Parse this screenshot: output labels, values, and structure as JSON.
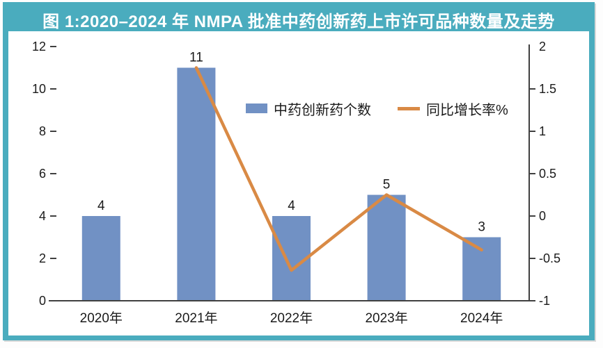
{
  "title": "图 1:2020–2024 年 NMPA 批准中药创新药上市许可品种数量及走势",
  "legend": {
    "bar_label": "中药创新药个数",
    "line_label": "同比增长率%"
  },
  "colors": {
    "frame_teal": "#4aacbe",
    "bar_blue": "#7191c4",
    "line_orange": "#d98a45",
    "axis_line": "#404040",
    "axis_text": "#1a1a1a",
    "title_text": "#ffffff"
  },
  "chart_data": {
    "type": "combo-bar-line",
    "title": "图 1:2020–2024 年 NMPA 批准中药创新药上市许可品种数量及走势",
    "categories": [
      "2020年",
      "2021年",
      "2022年",
      "2023年",
      "2024年"
    ],
    "series": [
      {
        "name": "中药创新药个数",
        "type": "bar",
        "axis": "left",
        "values": [
          4,
          11,
          4,
          5,
          3
        ],
        "data_labels": [
          "4",
          "11",
          "4",
          "5",
          "3"
        ],
        "color": "#7191c4"
      },
      {
        "name": "同比增长率%",
        "type": "line",
        "axis": "right",
        "values": [
          null,
          1.75,
          -0.64,
          0.25,
          -0.4
        ],
        "color": "#d98a45"
      }
    ],
    "left_axis": {
      "min": 0,
      "max": 12,
      "ticks": [
        {
          "label": "0",
          "value": 0
        },
        {
          "label": "2",
          "value": 2
        },
        {
          "label": "4",
          "value": 4
        },
        {
          "label": "6",
          "value": 6
        },
        {
          "label": "8",
          "value": 8
        },
        {
          "label": "10",
          "value": 10
        },
        {
          "label": "12",
          "value": 12
        }
      ]
    },
    "right_axis": {
      "min": -1,
      "max": 2,
      "ticks": [
        {
          "label": "2",
          "value": 2
        },
        {
          "label": "1.5",
          "value": 1.5
        },
        {
          "label": "1",
          "value": 1
        },
        {
          "label": "0.5",
          "value": 0.5
        },
        {
          "label": "0",
          "value": 0
        },
        {
          "label": "-0.5",
          "value": -0.5
        },
        {
          "label": "-1",
          "value": -1
        }
      ]
    },
    "grid": false,
    "legend_position": "inside-top-center"
  }
}
